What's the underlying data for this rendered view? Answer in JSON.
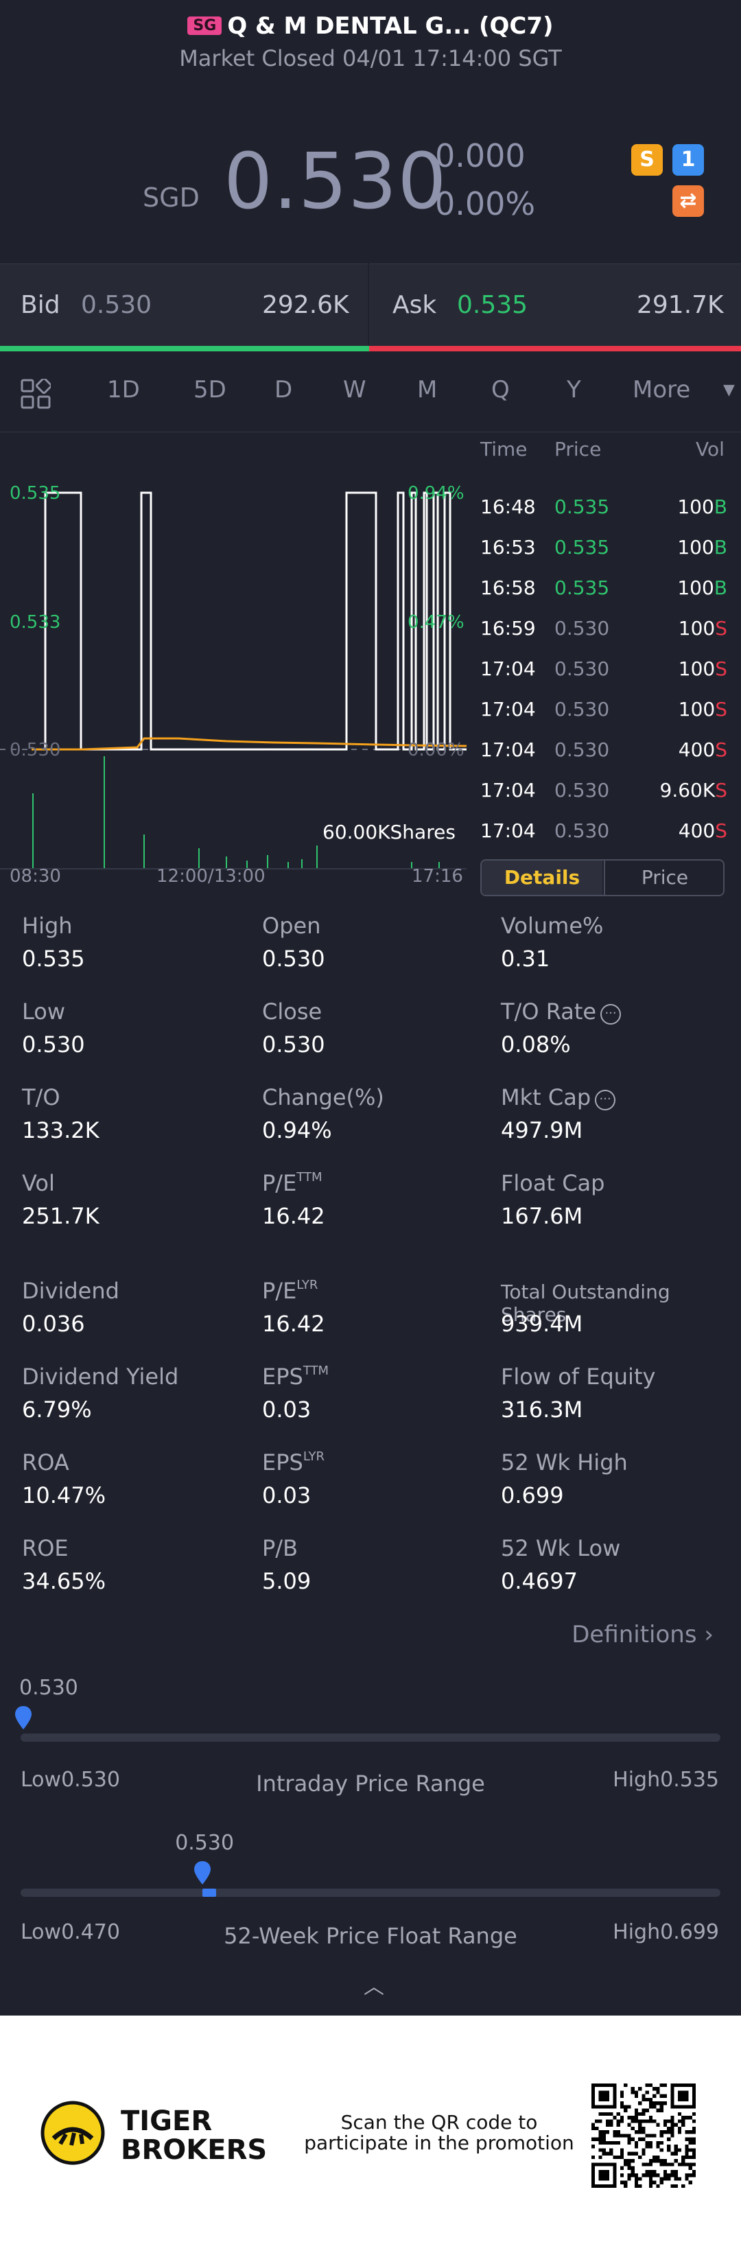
{
  "header": {
    "exchange_badge": "SG",
    "title": "Q & M DENTAL G... (QC7)",
    "status": "Market Closed 04/01 17:14:00 SGT"
  },
  "quote": {
    "currency": "SGD",
    "last": "0.530",
    "change": "0.000",
    "change_pct": "0.00%"
  },
  "badges": {
    "dollar": "S",
    "flash": "1",
    "swap": "⇄"
  },
  "bidask": {
    "bid_label": "Bid",
    "bid_price": "0.530",
    "bid_size": "292.6K",
    "ask_label": "Ask",
    "ask_price": "0.535",
    "ask_size": "291.7K"
  },
  "tabs": [
    "1D",
    "5D",
    "D",
    "W",
    "M",
    "Q",
    "Y",
    "More"
  ],
  "active_tab": "1D",
  "chart": {
    "y_labels": [
      "0.535",
      "0.533",
      "0.530"
    ],
    "pct_labels": [
      "0.94%",
      "0.47%",
      "0.00%"
    ],
    "x_labels": [
      "08:30",
      "12:00/13:00",
      "17:16"
    ],
    "volume_label": "60.00KShares"
  },
  "ticks": {
    "headers": {
      "time": "Time",
      "price": "Price",
      "vol": "Vol"
    },
    "rows": [
      {
        "time": "16:48",
        "price": "0.535",
        "vol": "100",
        "side": "B"
      },
      {
        "time": "16:53",
        "price": "0.535",
        "vol": "100",
        "side": "B"
      },
      {
        "time": "16:58",
        "price": "0.535",
        "vol": "100",
        "side": "B"
      },
      {
        "time": "16:59",
        "price": "0.530",
        "vol": "100",
        "side": "S"
      },
      {
        "time": "17:04",
        "price": "0.530",
        "vol": "100",
        "side": "S"
      },
      {
        "time": "17:04",
        "price": "0.530",
        "vol": "100",
        "side": "S"
      },
      {
        "time": "17:04",
        "price": "0.530",
        "vol": "400",
        "side": "S"
      },
      {
        "time": "17:04",
        "price": "0.530",
        "vol": "9.60K",
        "side": "S"
      },
      {
        "time": "17:04",
        "price": "0.530",
        "vol": "400",
        "side": "S"
      }
    ],
    "toggle": {
      "details": "Details",
      "price": "Price"
    }
  },
  "stats": {
    "high": {
      "label": "High",
      "value": "0.535"
    },
    "open": {
      "label": "Open",
      "value": "0.530"
    },
    "volume_pct": {
      "label": "Volume%",
      "value": "0.31"
    },
    "low": {
      "label": "Low",
      "value": "0.530"
    },
    "close": {
      "label": "Close",
      "value": "0.530"
    },
    "to_rate": {
      "label": "T/O Rate",
      "value": "0.08%"
    },
    "to": {
      "label": "T/O",
      "value": "133.2K"
    },
    "change_pct": {
      "label": "Change(%)",
      "value": "0.94%"
    },
    "mkt_cap": {
      "label": "Mkt Cap",
      "value": "497.9M"
    },
    "vol": {
      "label": "Vol",
      "value": "251.7K"
    },
    "pe_ttm": {
      "label": "P/E",
      "sup": "TTM",
      "value": "16.42"
    },
    "float_cap": {
      "label": "Float Cap",
      "value": "167.6M"
    },
    "dividend": {
      "label": "Dividend",
      "value": "0.036"
    },
    "pe_lyr": {
      "label": "P/E",
      "sup": "LYR",
      "value": "16.42"
    },
    "total_shares": {
      "label": "Total Outstanding Shares",
      "value": "939.4M"
    },
    "div_yield": {
      "label": "Dividend Yield",
      "value": "6.79%"
    },
    "eps_ttm": {
      "label": "EPS",
      "sup": "TTM",
      "value": "0.03"
    },
    "flow_equity": {
      "label": "Flow of Equity",
      "value": "316.3M"
    },
    "roa": {
      "label": "ROA",
      "value": "10.47%"
    },
    "eps_lyr": {
      "label": "EPS",
      "sup": "LYR",
      "value": "0.03"
    },
    "wk52_high": {
      "label": "52 Wk High",
      "value": "0.699"
    },
    "roe": {
      "label": "ROE",
      "value": "34.65%"
    },
    "pb": {
      "label": "P/B",
      "value": "5.09"
    },
    "wk52_low": {
      "label": "52 Wk Low",
      "value": "0.4697"
    }
  },
  "definitions_label": "Definitions",
  "intraday_range": {
    "current": "0.530",
    "low_label": "Low",
    "low": "0.530",
    "title": "Intraday Price Range",
    "high_label": "High",
    "high": "0.535",
    "position": 0
  },
  "wk52_range": {
    "current": "0.530",
    "low_label": "Low",
    "low": "0.470",
    "title": "52-Week Price Float Range",
    "high_label": "High",
    "high": "0.699",
    "position": 0.26
  },
  "footer": {
    "brand_line1": "TIGER",
    "brand_line2": "BROKERS",
    "promo_line1": "Scan the QR code to",
    "promo_line2": "participate in the promotion"
  }
}
